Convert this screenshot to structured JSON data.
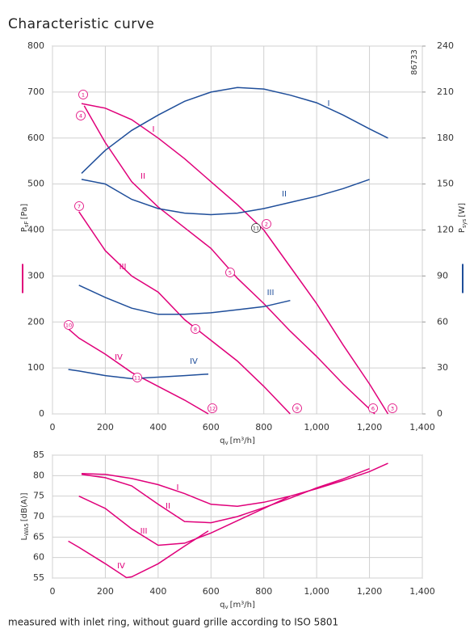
{
  "chart_data": [
    {
      "type": "line",
      "title": "Characteristic curve",
      "code": "86733",
      "x_label": "q",
      "x_label_sub": "v",
      "x_label_unit": "[m³/h]",
      "y_label": "P",
      "y_label_sub": "sF",
      "y_label_unit": "[Pa]",
      "y2_label": "P",
      "y2_label_sub": "sys",
      "y2_label_unit": "[W]",
      "xlim": [
        0,
        1400
      ],
      "xticks": [
        0,
        200,
        400,
        600,
        800,
        {
          "value": 1000,
          "label": "1,000"
        },
        {
          "value": 1200,
          "label": "1,200"
        },
        {
          "value": 1400,
          "label": "1,400"
        }
      ],
      "ylim": [
        0,
        800
      ],
      "yticks": [
        0,
        100,
        200,
        300,
        400,
        500,
        600,
        700,
        800
      ],
      "y2lim": [
        0,
        240
      ],
      "y2ticks": [
        0,
        30,
        60,
        90,
        120,
        150,
        180,
        210,
        240
      ],
      "grid": true,
      "markers": [
        "1",
        "2",
        "3",
        "4",
        "5",
        "6",
        "7",
        "8",
        "9",
        "10",
        "11",
        "12",
        "11"
      ],
      "series": [
        {
          "name": "I",
          "color": "#e0007a",
          "x": [
            110,
            200,
            300,
            400,
            500,
            600,
            700,
            800,
            900,
            1000,
            1100,
            1200,
            1270
          ],
          "values": [
            675,
            665,
            640,
            600,
            555,
            505,
            455,
            400,
            320,
            240,
            150,
            65,
            0
          ]
        },
        {
          "name": "II",
          "color": "#e0007a",
          "x": [
            120,
            200,
            300,
            400,
            500,
            600,
            700,
            800,
            900,
            1000,
            1100,
            1220
          ],
          "values": [
            670,
            590,
            505,
            450,
            405,
            360,
            295,
            240,
            180,
            125,
            65,
            0
          ]
        },
        {
          "name": "III",
          "color": "#e0007a",
          "x": [
            100,
            200,
            300,
            400,
            500,
            600,
            700,
            800,
            900
          ],
          "values": [
            440,
            355,
            300,
            265,
            205,
            160,
            115,
            60,
            0
          ]
        },
        {
          "name": "IV",
          "color": "#e0007a",
          "x": [
            60,
            100,
            200,
            300,
            400,
            500,
            590
          ],
          "values": [
            185,
            165,
            130,
            90,
            60,
            30,
            0
          ]
        },
        {
          "name": "I",
          "color": "#1f4e9a",
          "axis": "y2",
          "x": [
            110,
            200,
            300,
            400,
            500,
            600,
            700,
            800,
            900,
            1000,
            1100,
            1200,
            1270
          ],
          "values": [
            157,
            172,
            185,
            195,
            204,
            210,
            213,
            212,
            208,
            203,
            195,
            186,
            180
          ]
        },
        {
          "name": "II",
          "color": "#1f4e9a",
          "axis": "y2",
          "x": [
            110,
            200,
            300,
            400,
            500,
            600,
            700,
            800,
            900,
            1000,
            1100,
            1200
          ],
          "values": [
            153,
            150,
            140,
            134,
            131,
            130,
            131,
            134,
            138,
            142,
            147,
            153
          ]
        },
        {
          "name": "III",
          "color": "#1f4e9a",
          "axis": "y2",
          "x": [
            100,
            200,
            300,
            400,
            500,
            600,
            700,
            800,
            900
          ],
          "values": [
            84,
            76,
            69,
            65,
            65,
            66,
            68,
            70,
            74
          ]
        },
        {
          "name": "IV",
          "color": "#1f4e9a",
          "axis": "y2",
          "x": [
            60,
            100,
            200,
            300,
            400,
            500,
            590
          ],
          "values": [
            29,
            28,
            25,
            23,
            24,
            25,
            26
          ]
        }
      ]
    },
    {
      "type": "line",
      "note": "measured with inlet ring, without guard grille according to ISO 5801",
      "x_label": "q",
      "x_label_sub": "v",
      "x_label_unit": "[m³/h]",
      "y_label": "L",
      "y_label_sub": "WA5",
      "y_label_unit": "[dB(A)]",
      "xlim": [
        0,
        1400
      ],
      "xticks": [
        0,
        200,
        400,
        600,
        800,
        {
          "value": 1000,
          "label": "1,000"
        },
        {
          "value": 1200,
          "label": "1,200"
        },
        {
          "value": 1400,
          "label": "1,400"
        }
      ],
      "ylim": [
        55,
        85
      ],
      "yticks": [
        55,
        60,
        65,
        70,
        75,
        80,
        85
      ],
      "grid": true,
      "series": [
        {
          "name": "I",
          "color": "#e0007a",
          "x": [
            110,
            200,
            300,
            400,
            500,
            600,
            700,
            800,
            900,
            1000,
            1100,
            1200,
            1270
          ],
          "values": [
            80.5,
            80.3,
            79.3,
            77.8,
            75.6,
            73.0,
            72.5,
            73.5,
            75.0,
            76.8,
            78.8,
            81.0,
            83.0
          ]
        },
        {
          "name": "II",
          "color": "#e0007a",
          "x": [
            110,
            200,
            300,
            400,
            500,
            600,
            700,
            800,
            900,
            1000,
            1100,
            1200
          ],
          "values": [
            80.3,
            79.5,
            77.5,
            73.0,
            68.8,
            68.5,
            70.0,
            72.2,
            74.5,
            77.0,
            79.2,
            81.7
          ]
        },
        {
          "name": "III",
          "color": "#e0007a",
          "x": [
            100,
            200,
            300,
            400,
            500,
            600,
            700,
            800,
            900
          ],
          "values": [
            75,
            72,
            67,
            63,
            63.5,
            66,
            69,
            72,
            75
          ]
        },
        {
          "name": "IV",
          "color": "#e0007a",
          "x": [
            60,
            100,
            200,
            280,
            300,
            400,
            500,
            590
          ],
          "values": [
            64,
            62.5,
            58.5,
            55.1,
            55.3,
            58.5,
            62.8,
            66.5
          ]
        }
      ]
    }
  ]
}
